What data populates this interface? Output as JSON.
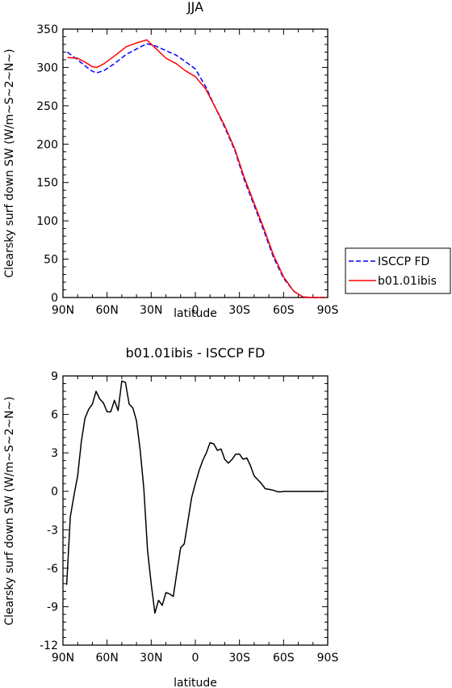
{
  "chart_data": [
    {
      "type": "line",
      "title": "JJA",
      "xlabel": "latitude",
      "ylabel": "Clearsky surf down SW (W/m~S~2~N~)",
      "x_ticks": [
        {
          "lat": 90,
          "label": "90N"
        },
        {
          "lat": 60,
          "label": "60N"
        },
        {
          "lat": 30,
          "label": "30N"
        },
        {
          "lat": 0,
          "label": "0"
        },
        {
          "lat": -30,
          "label": "30S"
        },
        {
          "lat": -60,
          "label": "60S"
        },
        {
          "lat": -90,
          "label": "90S"
        }
      ],
      "xlim": [
        90,
        -90
      ],
      "ylim": [
        0,
        350
      ],
      "y_ticks": [
        0,
        50,
        100,
        150,
        200,
        250,
        300,
        350
      ],
      "legend_position": "right",
      "grid": false,
      "series": [
        {
          "name": "ISCCP FD",
          "color": "#0000ff",
          "dash": "dashed",
          "x": [
            87,
            80,
            75,
            70,
            67,
            62,
            55,
            47,
            40,
            33,
            27,
            20,
            13,
            7,
            0,
            -7,
            -13,
            -20,
            -27,
            -33,
            -40,
            -47,
            -53,
            -60,
            -67,
            -73,
            -78,
            -83,
            -88
          ],
          "y": [
            320,
            310,
            302,
            295,
            293,
            296,
            305,
            317,
            324,
            331,
            328,
            322,
            316,
            308,
            298,
            275,
            250,
            222,
            191,
            155,
            120,
            85,
            53,
            25,
            8,
            1,
            0,
            0,
            0
          ]
        },
        {
          "name": "b01.01ibis",
          "color": "#ff0000",
          "dash": "solid",
          "x": [
            87,
            80,
            75,
            70,
            67,
            62,
            55,
            47,
            40,
            33,
            27,
            20,
            13,
            7,
            0,
            -7,
            -13,
            -20,
            -27,
            -33,
            -40,
            -47,
            -53,
            -60,
            -67,
            -73,
            -78,
            -83,
            -88
          ],
          "y": [
            313,
            312,
            307,
            301,
            300,
            305,
            315,
            327,
            332,
            336,
            325,
            312,
            305,
            296,
            288,
            272,
            250,
            224,
            193,
            158,
            123,
            88,
            56,
            27,
            8,
            1,
            0,
            0,
            0
          ]
        }
      ]
    },
    {
      "type": "line",
      "title": "b01.01ibis - ISCCP FD",
      "xlabel": "latitude",
      "ylabel": "Clearsky surf down SW (W/m~S~2~N~)",
      "x_ticks": [
        {
          "lat": 90,
          "label": "90N"
        },
        {
          "lat": 60,
          "label": "60N"
        },
        {
          "lat": 30,
          "label": "30N"
        },
        {
          "lat": 0,
          "label": "0"
        },
        {
          "lat": -30,
          "label": "30S"
        },
        {
          "lat": -60,
          "label": "60S"
        },
        {
          "lat": -90,
          "label": "90S"
        }
      ],
      "xlim": [
        90,
        -90
      ],
      "ylim": [
        -12,
        9
      ],
      "y_ticks": [
        -12,
        -9,
        -6,
        -3,
        0,
        3,
        6,
        9
      ],
      "grid": false,
      "series": [
        {
          "color": "#000000",
          "dash": "solid",
          "x": [
            87.5,
            85,
            82.5,
            80,
            77.5,
            75,
            72.5,
            70,
            67.5,
            65,
            62.5,
            60,
            57.5,
            55,
            52.5,
            50,
            47.5,
            45,
            42.5,
            40,
            37.5,
            35,
            32.5,
            30,
            27.5,
            25,
            22.5,
            20,
            17.5,
            15,
            12.5,
            10,
            7.5,
            5,
            2.5,
            0,
            -2.5,
            -5,
            -7.5,
            -10,
            -12.5,
            -15,
            -17.5,
            -20,
            -22.5,
            -25,
            -27.5,
            -30,
            -32.5,
            -35,
            -37.5,
            -40,
            -42.5,
            -45,
            -47.5,
            -50,
            -52.5,
            -55,
            -57.5,
            -60,
            -62.5,
            -65,
            -67.5,
            -70,
            -72.5,
            -75,
            -77.5,
            -80,
            -82.5,
            -85,
            -87.5
          ],
          "y": [
            -7.3,
            -2.0,
            -0.3,
            1.2,
            3.9,
            5.7,
            6.4,
            6.8,
            7.8,
            7.2,
            6.9,
            6.2,
            6.2,
            7.1,
            6.3,
            8.6,
            8.5,
            6.8,
            6.5,
            5.5,
            3.2,
            0.2,
            -4.6,
            -7.2,
            -9.5,
            -8.5,
            -8.9,
            -7.9,
            -8.0,
            -8.2,
            -6.3,
            -4.4,
            -4.1,
            -2.3,
            -0.5,
            0.6,
            1.6,
            2.4,
            3.0,
            3.8,
            3.7,
            3.2,
            3.3,
            2.5,
            2.2,
            2.5,
            2.9,
            2.9,
            2.5,
            2.6,
            2.0,
            1.2,
            0.9,
            0.6,
            0.2,
            0.15,
            0.1,
            0.0,
            -0.05,
            0.0,
            0.0,
            0.0,
            0.0,
            0.0,
            0.0,
            0.0,
            0.0,
            0.0,
            0.0,
            0.0,
            0.0
          ]
        }
      ]
    }
  ]
}
